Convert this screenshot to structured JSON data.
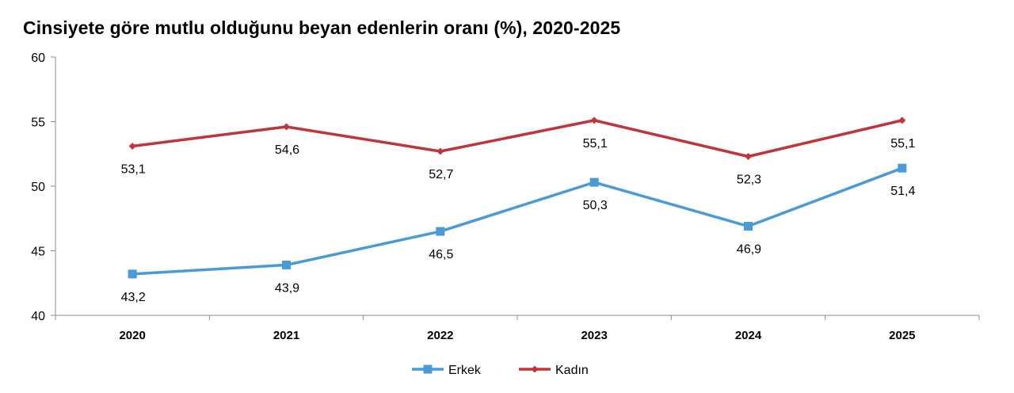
{
  "chart_data": {
    "type": "line",
    "title": "Cinsiyete göre mutlu olduğunu beyan edenlerin oranı (%), 2020-2025",
    "categories": [
      "2020",
      "2021",
      "2022",
      "2023",
      "2024",
      "2025"
    ],
    "ylim": [
      40,
      60
    ],
    "yticks": [
      "40",
      "45",
      "50",
      "55",
      "60"
    ],
    "xlabel": "",
    "ylabel": "",
    "grid": false,
    "legend_position": "bottom-center",
    "series": [
      {
        "name": "Erkek",
        "color": "#4a9ad7",
        "marker": "square",
        "values": [
          43.2,
          43.9,
          46.5,
          50.3,
          46.9,
          51.4
        ],
        "labels": [
          "43,2",
          "43,9",
          "46,5",
          "50,3",
          "46,9",
          "51,4"
        ],
        "label_position": "below"
      },
      {
        "name": "Kadın",
        "color": "#c0353a",
        "marker": "diamond",
        "values": [
          53.1,
          54.6,
          52.7,
          55.1,
          52.3,
          55.1
        ],
        "labels": [
          "53,1",
          "54,6",
          "52,7",
          "55,1",
          "52,3",
          "55,1"
        ],
        "label_position": "below"
      }
    ]
  }
}
